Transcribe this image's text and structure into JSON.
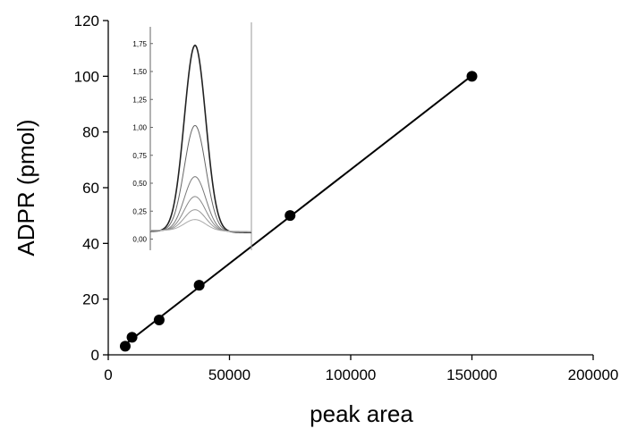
{
  "chart_data": [
    {
      "type": "scatter",
      "xlabel": "peak area",
      "ylabel": "ADPR (pmol)",
      "xlim": [
        0,
        200000
      ],
      "ylim": [
        0,
        120
      ],
      "xticks": [
        0,
        50000,
        100000,
        150000,
        200000
      ],
      "yticks": [
        0,
        20,
        40,
        60,
        80,
        100,
        120
      ],
      "xtick_labels": [
        "0",
        "50000",
        "100000",
        "150000",
        "200000"
      ],
      "ytick_labels": [
        "0",
        "20",
        "40",
        "60",
        "80",
        "100",
        "120"
      ],
      "grid": false,
      "series": [
        {
          "x": [
            7000,
            9800,
            21000,
            37500,
            75000,
            150000
          ],
          "y": [
            3.1,
            6.3,
            12.5,
            25,
            50,
            100
          ],
          "marker": "circle",
          "fit_line": true,
          "color": "#000000"
        }
      ]
    },
    {
      "type": "line",
      "inset": true,
      "ylim": [
        -0.1,
        1.9
      ],
      "yticks": [
        0,
        0.25,
        0.5,
        0.75,
        1.0,
        1.25,
        1.5,
        1.75
      ],
      "ytick_labels": [
        "0,00",
        "0,25",
        "0,50",
        "0,75",
        "1,00",
        "1,25",
        "1,50",
        "1,75"
      ],
      "peak_heights": [
        1.74,
        1.02,
        0.56,
        0.38,
        0.26,
        0.17
      ],
      "baseline": 0.07,
      "grid": false
    }
  ]
}
